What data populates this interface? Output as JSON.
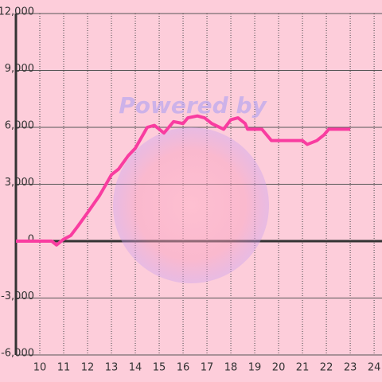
{
  "chart_data": {
    "type": "line",
    "watermark": "Powered by",
    "x": [
      9,
      10,
      10.5,
      10.7,
      11,
      11.3,
      11.6,
      12,
      12.5,
      13,
      13.3,
      13.7,
      14,
      14.5,
      14.8,
      15.2,
      15.6,
      16,
      16.2,
      16.6,
      16.9,
      17.2,
      17.7,
      18,
      18.3,
      18.6,
      18.7,
      19.3,
      19.7,
      20.5,
      21,
      21.2,
      21.6,
      21.9,
      22.1,
      22.5,
      23
    ],
    "series": [
      {
        "color": "#f93ca0",
        "values": [
          0,
          0,
          0,
          -200,
          100,
          300,
          800,
          1500,
          2400,
          3500,
          3800,
          4500,
          4900,
          6000,
          6100,
          5700,
          6300,
          6200,
          6500,
          6600,
          6500,
          6200,
          5900,
          6400,
          6500,
          6200,
          5900,
          5900,
          5300,
          5300,
          5300,
          5100,
          5300,
          5600,
          5900,
          5900,
          5900
        ]
      }
    ],
    "xlim": [
      9,
      24.33
    ],
    "xticks": [
      10,
      11,
      12,
      13,
      14,
      15,
      16,
      17,
      18,
      19,
      20,
      21,
      22,
      23,
      24
    ],
    "ylim": [
      -6000,
      12000
    ],
    "yticks": [
      {
        "value": 12000,
        "label": "12,000"
      },
      {
        "value": 9000,
        "label": "9,000"
      },
      {
        "value": 6000,
        "label": "6,000"
      },
      {
        "value": 3000,
        "label": "3,000"
      },
      0,
      {
        "value": -3000,
        "label": "-3,000"
      },
      {
        "value": -6000,
        "label": "-6,000"
      }
    ],
    "grid": true
  }
}
